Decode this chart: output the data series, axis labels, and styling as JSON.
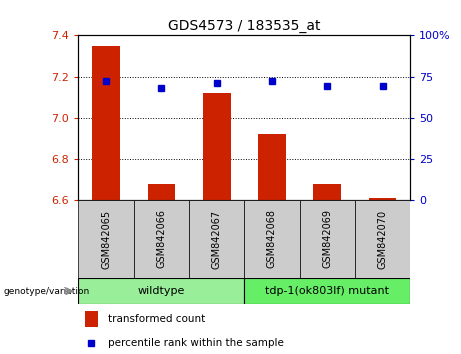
{
  "title": "GDS4573 / 183535_at",
  "samples": [
    "GSM842065",
    "GSM842066",
    "GSM842067",
    "GSM842068",
    "GSM842069",
    "GSM842070"
  ],
  "transformed_count": [
    7.35,
    6.68,
    7.12,
    6.92,
    6.68,
    6.61
  ],
  "percentile_rank": [
    72,
    68,
    71,
    72,
    69,
    69
  ],
  "ylim_left": [
    6.6,
    7.4
  ],
  "ylim_right": [
    0,
    100
  ],
  "yticks_left": [
    6.6,
    6.8,
    7.0,
    7.2,
    7.4
  ],
  "yticks_right": [
    0,
    25,
    50,
    75,
    100
  ],
  "bar_color": "#cc2200",
  "dot_color": "#0000cc",
  "group_labels": [
    "wildtype",
    "tdp-1(ok803lf) mutant"
  ],
  "group_colors": [
    "#99ee99",
    "#66ee66"
  ],
  "genotype_label": "genotype/variation",
  "legend_items": [
    "transformed count",
    "percentile rank within the sample"
  ],
  "legend_colors": [
    "#cc2200",
    "#0000cc"
  ],
  "tick_label_bg": "#cccccc"
}
